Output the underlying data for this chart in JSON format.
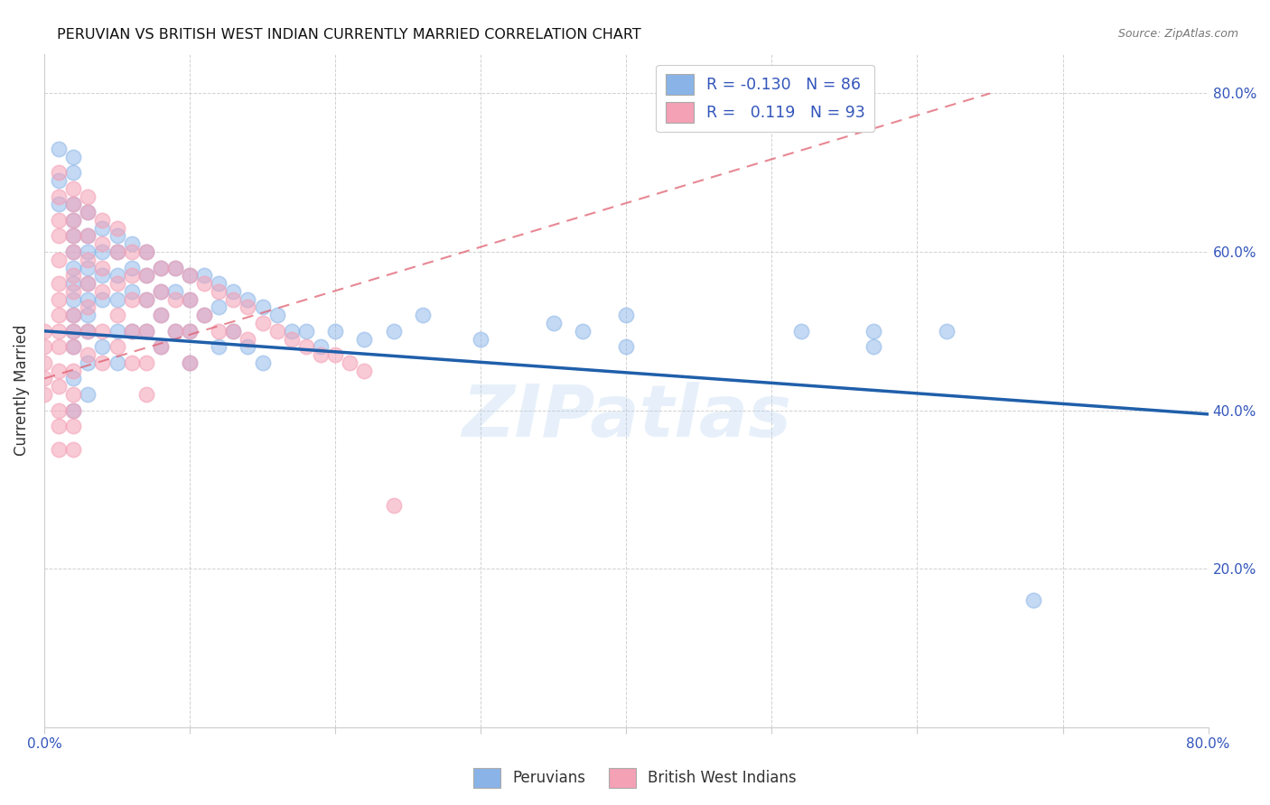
{
  "title": "PERUVIAN VS BRITISH WEST INDIAN CURRENTLY MARRIED CORRELATION CHART",
  "source": "Source: ZipAtlas.com",
  "ylabel": "Currently Married",
  "xlim": [
    0.0,
    0.8
  ],
  "ylim": [
    0.0,
    0.85
  ],
  "watermark": "ZIPatlas",
  "legend_blue_label": "R = -0.130   N = 86",
  "legend_pink_label": "R =   0.119   N = 93",
  "blue_color": "#8ab4e8",
  "pink_color": "#f4a0b5",
  "blue_line_color": "#1f5faa",
  "pink_line_color": "#e06070",
  "blue_line_x0": 0.0,
  "blue_line_y0": 0.5,
  "blue_line_x1": 0.8,
  "blue_line_y1": 0.395,
  "pink_line_x0": 0.0,
  "pink_line_y0": 0.44,
  "pink_line_x1": 0.65,
  "pink_line_y1": 0.8,
  "peruvians_x": [
    0.01,
    0.01,
    0.01,
    0.02,
    0.02,
    0.02,
    0.02,
    0.02,
    0.02,
    0.02,
    0.02,
    0.02,
    0.02,
    0.02,
    0.02,
    0.02,
    0.02,
    0.03,
    0.03,
    0.03,
    0.03,
    0.03,
    0.03,
    0.03,
    0.03,
    0.03,
    0.03,
    0.04,
    0.04,
    0.04,
    0.04,
    0.04,
    0.05,
    0.05,
    0.05,
    0.05,
    0.05,
    0.05,
    0.06,
    0.06,
    0.06,
    0.06,
    0.07,
    0.07,
    0.07,
    0.07,
    0.08,
    0.08,
    0.08,
    0.08,
    0.09,
    0.09,
    0.09,
    0.1,
    0.1,
    0.1,
    0.1,
    0.11,
    0.11,
    0.12,
    0.12,
    0.12,
    0.13,
    0.13,
    0.14,
    0.14,
    0.15,
    0.15,
    0.16,
    0.17,
    0.18,
    0.19,
    0.2,
    0.22,
    0.24,
    0.26,
    0.3,
    0.35,
    0.37,
    0.4,
    0.4,
    0.52,
    0.57,
    0.57,
    0.62,
    0.68
  ],
  "peruvians_y": [
    0.73,
    0.69,
    0.66,
    0.72,
    0.7,
    0.66,
    0.64,
    0.62,
    0.6,
    0.58,
    0.56,
    0.54,
    0.52,
    0.5,
    0.48,
    0.44,
    0.4,
    0.65,
    0.62,
    0.6,
    0.58,
    0.56,
    0.54,
    0.52,
    0.5,
    0.46,
    0.42,
    0.63,
    0.6,
    0.57,
    0.54,
    0.48,
    0.62,
    0.6,
    0.57,
    0.54,
    0.5,
    0.46,
    0.61,
    0.58,
    0.55,
    0.5,
    0.6,
    0.57,
    0.54,
    0.5,
    0.58,
    0.55,
    0.52,
    0.48,
    0.58,
    0.55,
    0.5,
    0.57,
    0.54,
    0.5,
    0.46,
    0.57,
    0.52,
    0.56,
    0.53,
    0.48,
    0.55,
    0.5,
    0.54,
    0.48,
    0.53,
    0.46,
    0.52,
    0.5,
    0.5,
    0.48,
    0.5,
    0.49,
    0.5,
    0.52,
    0.49,
    0.51,
    0.5,
    0.52,
    0.48,
    0.5,
    0.5,
    0.48,
    0.5,
    0.16
  ],
  "bwi_x": [
    0.0,
    0.0,
    0.0,
    0.0,
    0.0,
    0.01,
    0.01,
    0.01,
    0.01,
    0.01,
    0.01,
    0.01,
    0.01,
    0.01,
    0.01,
    0.01,
    0.01,
    0.01,
    0.01,
    0.01,
    0.02,
    0.02,
    0.02,
    0.02,
    0.02,
    0.02,
    0.02,
    0.02,
    0.02,
    0.02,
    0.02,
    0.02,
    0.02,
    0.02,
    0.02,
    0.03,
    0.03,
    0.03,
    0.03,
    0.03,
    0.03,
    0.03,
    0.03,
    0.04,
    0.04,
    0.04,
    0.04,
    0.04,
    0.04,
    0.05,
    0.05,
    0.05,
    0.05,
    0.05,
    0.06,
    0.06,
    0.06,
    0.06,
    0.06,
    0.07,
    0.07,
    0.07,
    0.07,
    0.07,
    0.07,
    0.08,
    0.08,
    0.08,
    0.08,
    0.09,
    0.09,
    0.09,
    0.1,
    0.1,
    0.1,
    0.1,
    0.11,
    0.11,
    0.12,
    0.12,
    0.13,
    0.13,
    0.14,
    0.14,
    0.15,
    0.16,
    0.17,
    0.18,
    0.19,
    0.2,
    0.21,
    0.22,
    0.24
  ],
  "bwi_y": [
    0.5,
    0.48,
    0.46,
    0.44,
    0.42,
    0.7,
    0.67,
    0.64,
    0.62,
    0.59,
    0.56,
    0.54,
    0.52,
    0.5,
    0.48,
    0.45,
    0.43,
    0.4,
    0.38,
    0.35,
    0.68,
    0.66,
    0.64,
    0.62,
    0.6,
    0.57,
    0.55,
    0.52,
    0.5,
    0.48,
    0.45,
    0.42,
    0.4,
    0.38,
    0.35,
    0.67,
    0.65,
    0.62,
    0.59,
    0.56,
    0.53,
    0.5,
    0.47,
    0.64,
    0.61,
    0.58,
    0.55,
    0.5,
    0.46,
    0.63,
    0.6,
    0.56,
    0.52,
    0.48,
    0.6,
    0.57,
    0.54,
    0.5,
    0.46,
    0.6,
    0.57,
    0.54,
    0.5,
    0.46,
    0.42,
    0.58,
    0.55,
    0.52,
    0.48,
    0.58,
    0.54,
    0.5,
    0.57,
    0.54,
    0.5,
    0.46,
    0.56,
    0.52,
    0.55,
    0.5,
    0.54,
    0.5,
    0.53,
    0.49,
    0.51,
    0.5,
    0.49,
    0.48,
    0.47,
    0.47,
    0.46,
    0.45,
    0.28
  ]
}
